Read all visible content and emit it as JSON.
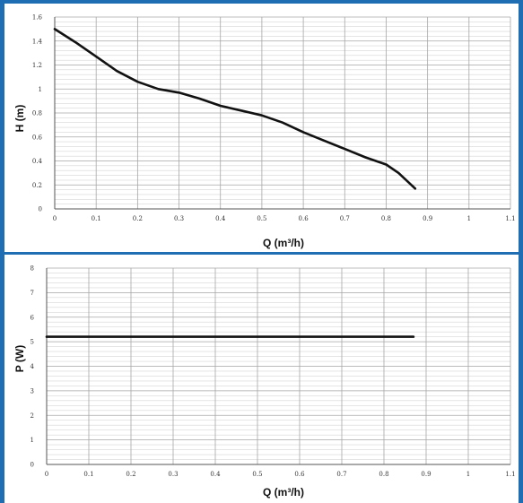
{
  "chart_data": [
    {
      "type": "line",
      "title": "",
      "xlabel": "Q (m³/h)",
      "ylabel": "H (m)",
      "xlim": [
        0,
        1.1
      ],
      "ylim": [
        0,
        1.6
      ],
      "x_ticks": [
        "0",
        "0.1",
        "0.2",
        "0.3",
        "0.4",
        "0.5",
        "0.6",
        "0.7",
        "0.8",
        "0.9",
        "1",
        "1.1"
      ],
      "y_ticks": [
        "0",
        "0.2",
        "0.4",
        "0.6",
        "0.8",
        "1",
        "1.2",
        "1.4",
        "1.6"
      ],
      "grid": true,
      "series": [
        {
          "x": [
            0,
            0.05,
            0.1,
            0.15,
            0.2,
            0.25,
            0.3,
            0.35,
            0.4,
            0.45,
            0.5,
            0.55,
            0.6,
            0.65,
            0.7,
            0.75,
            0.8,
            0.83,
            0.87
          ],
          "y": [
            1.5,
            1.39,
            1.27,
            1.15,
            1.06,
            1.0,
            0.97,
            0.92,
            0.86,
            0.82,
            0.78,
            0.72,
            0.64,
            0.57,
            0.5,
            0.43,
            0.37,
            0.3,
            0.17
          ],
          "color": "#111111"
        }
      ]
    },
    {
      "type": "line",
      "title": "",
      "xlabel": "Q (m³/h)",
      "ylabel": "P (W)",
      "xlim": [
        0,
        1.1
      ],
      "ylim": [
        0,
        8
      ],
      "x_ticks": [
        "0",
        "0.1",
        "0.2",
        "0.3",
        "0.4",
        "0.5",
        "0.6",
        "0.7",
        "0.8",
        "0.9",
        "1",
        "1.1"
      ],
      "y_ticks": [
        "0",
        "1",
        "2",
        "3",
        "4",
        "5",
        "6",
        "7",
        "8"
      ],
      "grid": true,
      "series": [
        {
          "x": [
            0,
            0.87
          ],
          "y": [
            5.2,
            5.2
          ],
          "color": "#111111"
        }
      ]
    }
  ]
}
